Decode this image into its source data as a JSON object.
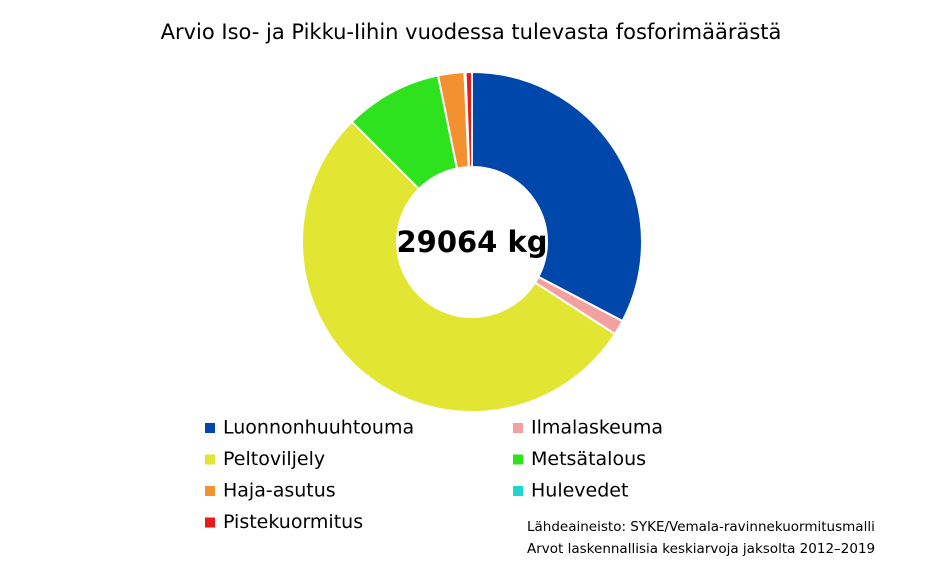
{
  "chart_data": {
    "type": "donut",
    "title": "Arvio Iso- ja Pikku-Iihin vuodessa tulevasta fosforimäärästä",
    "center_label": "29064 kg",
    "categories": [
      "Luonnonhuuhtouma",
      "Ilmalaskeuma",
      "Peltoviljely",
      "Metsätalous",
      "Haja-asutus",
      "Hulevedet",
      "Pistekuormitus"
    ],
    "values": [
      32.7,
      1.4,
      53.4,
      9.3,
      2.5,
      0.1,
      0.6
    ],
    "colors": [
      "#0047ab",
      "#f4a0a0",
      "#e3e533",
      "#2ee21e",
      "#f39130",
      "#1ed8d0",
      "#e81a1a"
    ],
    "source": [
      "Lähdeaineisto: SYKE/Vemala-ravinnekuormitusmalli",
      "Arvot laskennallisia keskiarvoja jaksolta 2012–2019"
    ]
  }
}
